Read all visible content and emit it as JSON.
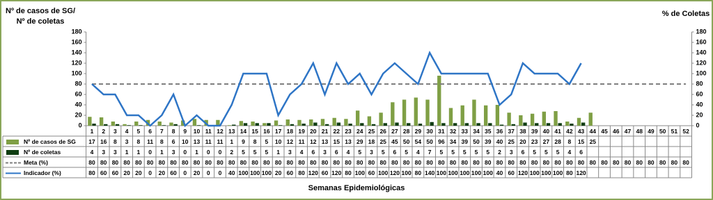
{
  "chart_data": {
    "type": "bar",
    "y_label": [
      "Nº de casos de SG/",
      "Nº de coletas"
    ],
    "y2_label": "% de Coletas",
    "x_label": "Semanas Epidemiológicas",
    "categories": [
      1,
      2,
      3,
      4,
      5,
      6,
      7,
      8,
      9,
      10,
      11,
      12,
      13,
      14,
      15,
      16,
      17,
      18,
      19,
      20,
      21,
      22,
      23,
      24,
      25,
      26,
      27,
      28,
      29,
      30,
      31,
      32,
      33,
      34,
      35,
      36,
      37,
      38,
      39,
      40,
      41,
      42,
      43,
      44,
      45,
      46,
      47,
      48,
      49,
      50,
      51,
      52
    ],
    "ylim": [
      0,
      180
    ],
    "yticks": [
      0,
      20,
      40,
      60,
      80,
      100,
      120,
      140,
      160,
      180
    ],
    "y2lim": [
      0,
      180
    ],
    "y2ticks": [
      0,
      20,
      40,
      60,
      80,
      100,
      120,
      140,
      160,
      180
    ],
    "series": [
      {
        "name": "Nº de casos de SG",
        "type": "bar",
        "color": "#7f9f45",
        "values": [
          17,
          16,
          8,
          3,
          8,
          11,
          8,
          6,
          10,
          13,
          11,
          11,
          1,
          9,
          8,
          5,
          10,
          12,
          11,
          12,
          13,
          15,
          13,
          29,
          18,
          25,
          45,
          50,
          54,
          50,
          96,
          34,
          39,
          50,
          39,
          40,
          25,
          20,
          23,
          27,
          28,
          8,
          15,
          25,
          null,
          null,
          null,
          null,
          null,
          null,
          null,
          null
        ]
      },
      {
        "name": "Nº de coletas",
        "type": "bar",
        "color": "#0f3d12",
        "values": [
          4,
          3,
          3,
          1,
          1,
          0,
          1,
          3,
          0,
          1,
          0,
          0,
          2,
          5,
          5,
          5,
          1,
          3,
          4,
          6,
          3,
          6,
          4,
          5,
          3,
          5,
          6,
          5,
          4,
          7,
          5,
          5,
          5,
          5,
          5,
          2,
          3,
          6,
          5,
          5,
          5,
          4,
          6,
          null,
          null,
          null,
          null,
          null,
          null,
          null,
          null,
          null
        ]
      },
      {
        "name": "Meta (%)",
        "type": "line",
        "axis": "y2",
        "dashed": true,
        "color": "#7f7f7f",
        "values": [
          80,
          80,
          80,
          80,
          80,
          80,
          80,
          80,
          80,
          80,
          80,
          80,
          80,
          80,
          80,
          80,
          80,
          80,
          80,
          80,
          80,
          80,
          80,
          80,
          80,
          80,
          80,
          80,
          80,
          80,
          80,
          80,
          80,
          80,
          80,
          80,
          80,
          80,
          80,
          80,
          80,
          80,
          80,
          80,
          80,
          80,
          80,
          80,
          80,
          80,
          80,
          80
        ]
      },
      {
        "name": "Indicador (%)",
        "type": "line",
        "axis": "y2",
        "dashed": false,
        "color": "#2e75c6",
        "values": [
          80,
          60,
          60,
          20,
          20,
          0,
          20,
          60,
          0,
          20,
          0,
          0,
          40,
          100,
          100,
          100,
          20,
          60,
          80,
          120,
          60,
          120,
          80,
          100,
          60,
          100,
          120,
          100,
          80,
          140,
          100,
          100,
          100,
          100,
          100,
          40,
          60,
          120,
          100,
          100,
          100,
          80,
          120,
          null,
          null,
          null,
          null,
          null,
          null,
          null,
          null,
          null
        ]
      }
    ]
  }
}
